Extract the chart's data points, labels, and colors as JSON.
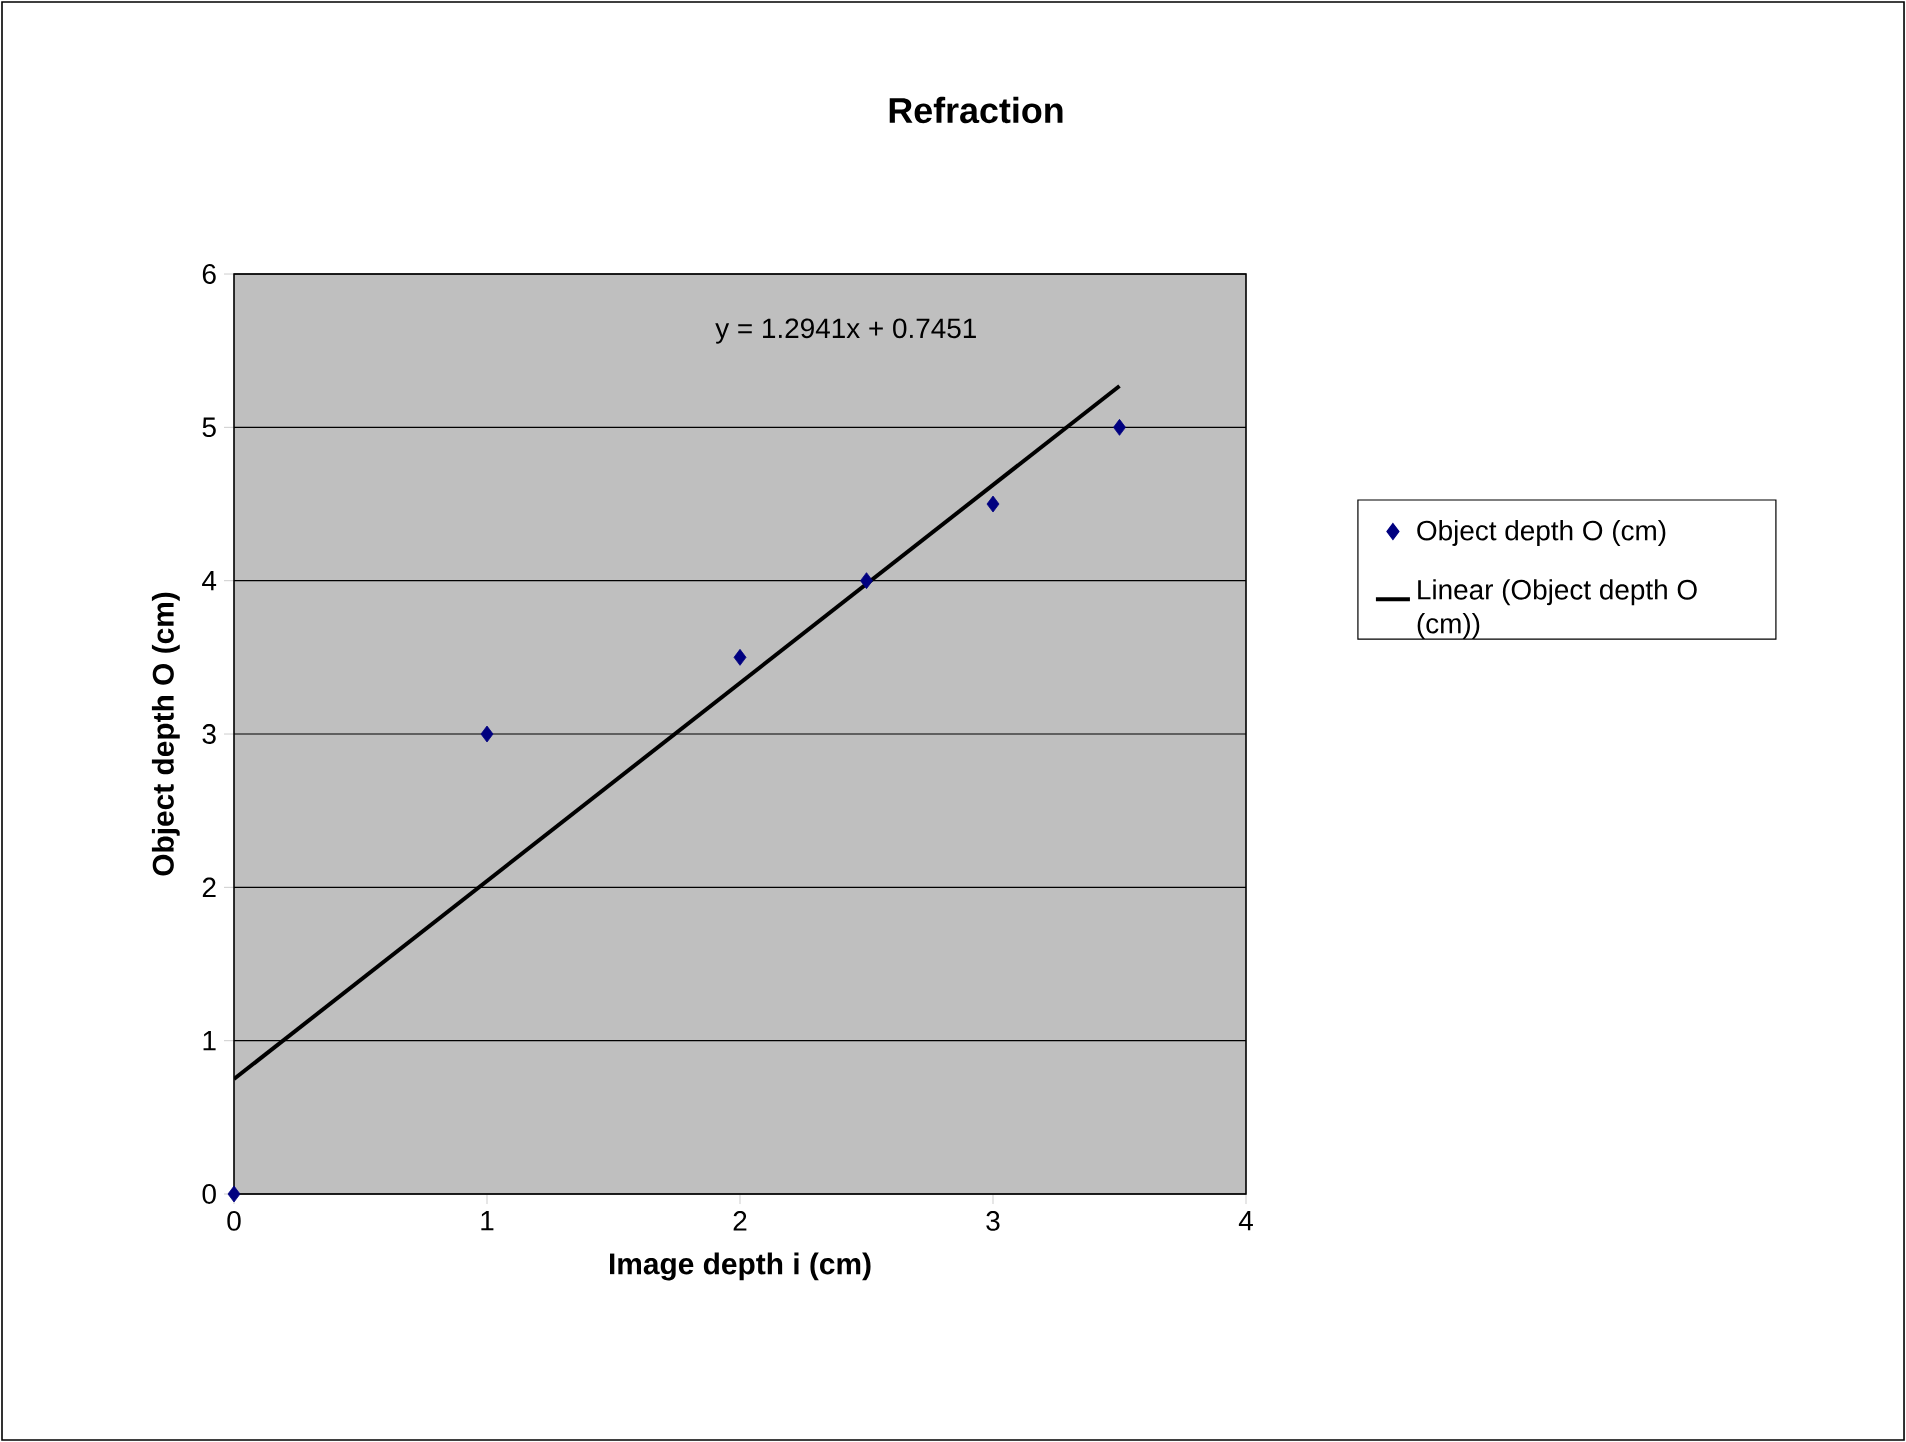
{
  "chart_data": {
    "type": "scatter",
    "title": "Refraction",
    "xlabel": "Image depth i (cm)",
    "ylabel": "Object depth O (cm)",
    "series": [
      {
        "name": "Object depth O (cm)",
        "color": "#000080",
        "marker": "diamond",
        "x": [
          0,
          1,
          2,
          2.5,
          3,
          3.5
        ],
        "values": [
          0,
          3,
          3.5,
          4,
          4.5,
          5
        ]
      },
      {
        "name": "Linear (Object depth O (cm))",
        "type": "line",
        "color": "#000000",
        "marker": "none",
        "line_style": "solid",
        "x": [
          0,
          3.5
        ],
        "values": [
          0.75,
          5.27
        ]
      }
    ],
    "annotations": [
      "y = 1.2941x + 0.7451"
    ],
    "xlim": [
      0,
      4
    ],
    "xticks": [
      0,
      1,
      2,
      3,
      4
    ],
    "ylim": [
      0,
      6
    ],
    "yticks": [
      0,
      1,
      2,
      3,
      4,
      5,
      6
    ],
    "grid": "y",
    "legend": "right"
  }
}
